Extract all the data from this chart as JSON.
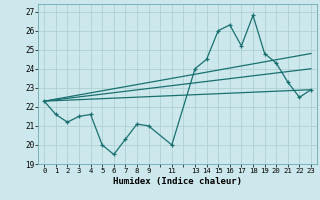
{
  "title": "",
  "xlabel": "Humidex (Indice chaleur)",
  "bg_color": "#cce8ec",
  "line_color": "#1a7070",
  "grid_color": "#aaccd0",
  "xlim": [
    -0.5,
    23.5
  ],
  "ylim": [
    19,
    27.4
  ],
  "yticks": [
    19,
    20,
    21,
    22,
    23,
    24,
    25,
    26,
    27
  ],
  "xtick_labels": [
    "0",
    "1",
    "2",
    "3",
    "4",
    "5",
    "6",
    "7",
    "8",
    "9",
    "",
    "11",
    "",
    "13",
    "14",
    "15",
    "16",
    "17",
    "18",
    "19",
    "20",
    "21",
    "22",
    "23"
  ],
  "lines": [
    {
      "x": [
        0,
        1,
        2,
        3,
        4,
        5,
        6,
        7,
        8,
        9,
        11,
        13,
        14,
        15,
        16,
        17,
        18,
        19,
        20,
        21,
        22,
        23
      ],
      "y": [
        22.3,
        21.6,
        21.2,
        21.5,
        21.6,
        20.0,
        19.5,
        20.3,
        21.1,
        21.0,
        20.0,
        24.0,
        24.5,
        26.0,
        26.3,
        25.2,
        26.8,
        24.8,
        24.3,
        23.3,
        22.5,
        22.9
      ],
      "marker": "+"
    },
    {
      "x": [
        0,
        23
      ],
      "y": [
        22.3,
        24.8
      ],
      "marker": null
    },
    {
      "x": [
        0,
        23
      ],
      "y": [
        22.3,
        24.0
      ],
      "marker": null
    },
    {
      "x": [
        0,
        23
      ],
      "y": [
        22.3,
        22.9
      ],
      "marker": null
    }
  ]
}
